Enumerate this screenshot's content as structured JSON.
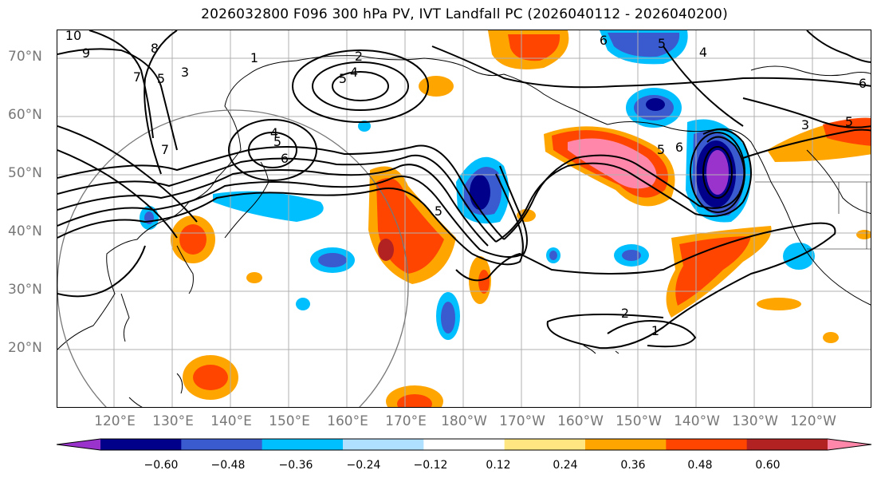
{
  "title": "2026032800 F096 300 hPa PV, IVT Landfall PC (2026040112 - 2026040200)",
  "lat_labels": [
    "70°N",
    "60°N",
    "50°N",
    "40°N",
    "30°N",
    "20°N"
  ],
  "lon_labels": [
    "120°E",
    "130°E",
    "140°E",
    "150°E",
    "160°E",
    "170°E",
    "180°W",
    "170°W",
    "160°W",
    "150°W",
    "140°W",
    "130°W",
    "120°W"
  ],
  "colorbar": {
    "ticks": [
      "−0.60",
      "−0.48",
      "−0.36",
      "−0.24",
      "−0.12",
      "0.12",
      "0.24",
      "0.36",
      "0.48",
      "0.60"
    ],
    "colors": [
      "#9933cc",
      "#00008b",
      "#3a5bd0",
      "#00bfff",
      "#b0e0ff",
      "#ffffff",
      "#ffe680",
      "#ffa500",
      "#ff4500",
      "#b22222",
      "#ff88aa"
    ]
  },
  "contour_labels": [
    "1",
    "2",
    "3",
    "4",
    "5",
    "6",
    "7",
    "8",
    "9",
    "10"
  ]
}
